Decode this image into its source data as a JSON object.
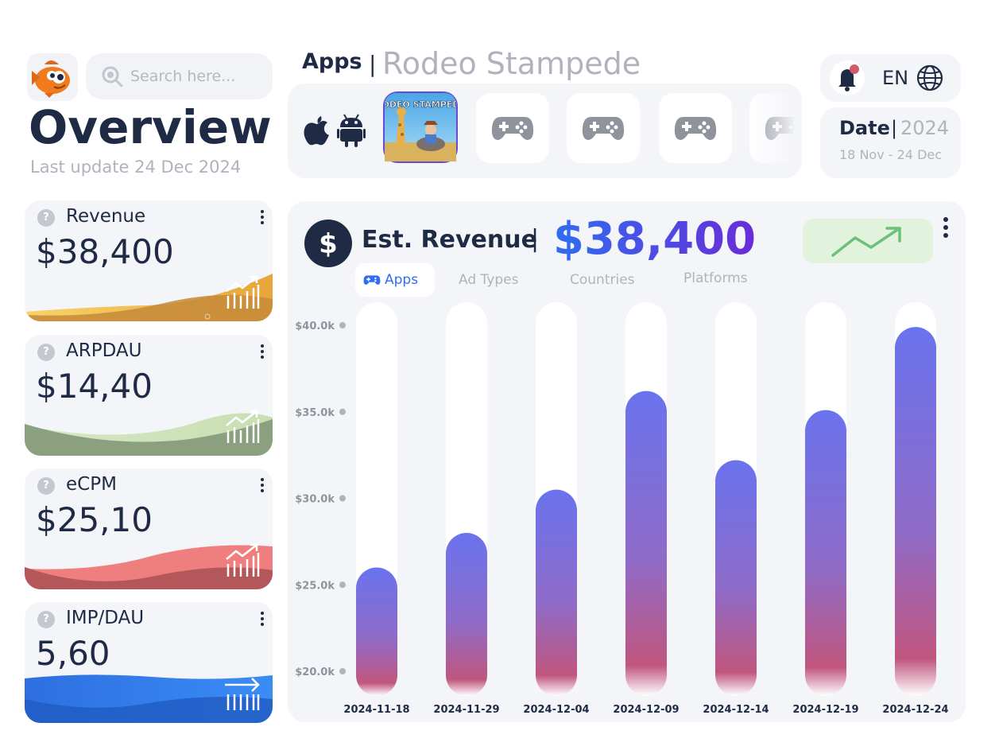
{
  "header": {
    "search_placeholder": "Search here...",
    "title": "Overview",
    "last_update": "Last update 24 Dec 2024"
  },
  "apps": {
    "label": "Apps",
    "separator": "|",
    "selected_name": "Rodeo Stampede",
    "platforms": [
      "apple-icon",
      "android-icon"
    ],
    "tiles": [
      {
        "name": "Rodeo Stampede",
        "icon": "rodeo-stampede-app-icon",
        "art_text": "RODEO STAMPEDE",
        "selected": true
      },
      {
        "icon": "gamepad-icon",
        "selected": false
      },
      {
        "icon": "gamepad-icon",
        "selected": false
      },
      {
        "icon": "gamepad-icon",
        "selected": false
      },
      {
        "icon": "gamepad-icon",
        "selected": false
      }
    ]
  },
  "topbar": {
    "language": "EN",
    "notification_dot_color": "#d45a6a"
  },
  "date": {
    "label": "Date",
    "separator": "|",
    "year": "2024",
    "range": "18 Nov - 24 Dec"
  },
  "metrics": [
    {
      "label": "Revenue",
      "value": "$38,400",
      "help": "?",
      "color": "#e8a53a"
    },
    {
      "label": "ARPDAU",
      "value": "$14,40",
      "help": "?",
      "color": "#8aa07e"
    },
    {
      "label": "eCPM",
      "value": "$25,10",
      "help": "?",
      "color": "#c65a5e"
    },
    {
      "label": "IMP/DAU",
      "value": "5,60",
      "help": "?",
      "color": "#2e6fe0"
    }
  ],
  "revenue_panel": {
    "title": "Est. Revenue",
    "separator": "|",
    "value": "$38,400",
    "currency_symbol": "$",
    "trend": "up",
    "trend_color": "#6cc07a",
    "tabs": [
      {
        "label": "Apps",
        "active": true
      },
      {
        "label": "Ad Types",
        "active": false
      },
      {
        "label": "Countries",
        "active": false
      },
      {
        "label": "Platforms",
        "active": false
      }
    ]
  },
  "chart_data": {
    "type": "bar",
    "categories": [
      "2024-11-18",
      "2024-11-29",
      "2024-12-04",
      "2024-12-09",
      "2024-12-14",
      "2024-12-19",
      "2024-12-24"
    ],
    "values": [
      26000,
      28000,
      30500,
      36200,
      32200,
      35100,
      39900
    ],
    "ytick_labels": [
      "$40.0k",
      "$35.0k",
      "$30.0k",
      "$25.0k",
      "$20.0k"
    ],
    "yticks": [
      40000,
      35000,
      30000,
      25000,
      20000
    ],
    "ylim": [
      18000,
      40000
    ],
    "bar_color_top": "#6a73ee",
    "bar_color_bottom": "#c0567e",
    "grid": false
  }
}
